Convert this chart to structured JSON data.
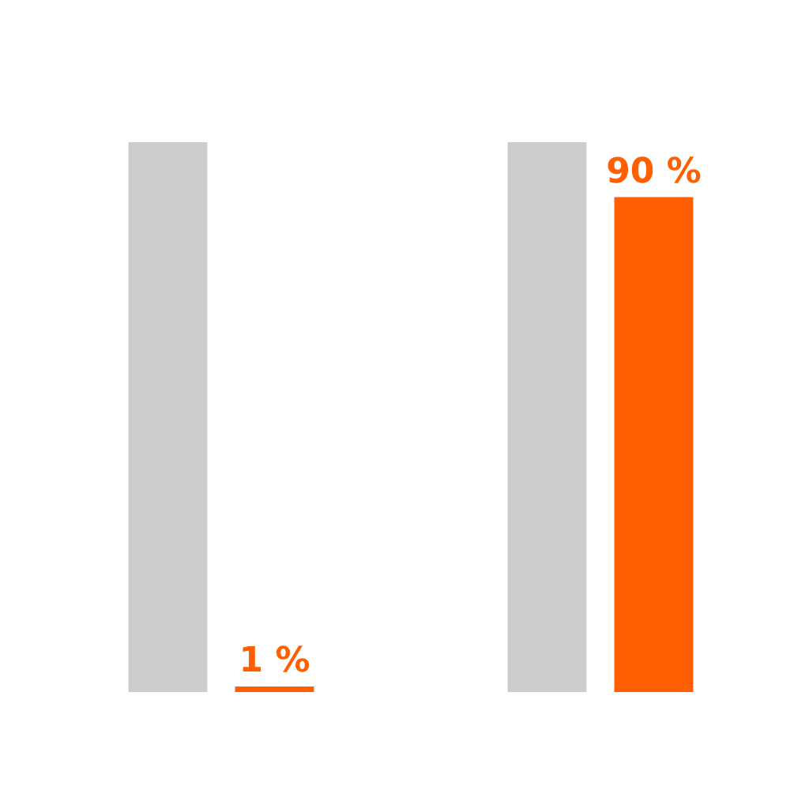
{
  "chart_data": {
    "type": "bar",
    "categories": [
      null,
      null
    ],
    "series": [
      {
        "color": "#cccccc",
        "values": [
          100,
          100
        ]
      },
      {
        "color": "#ff5f00",
        "values": [
          1,
          90
        ],
        "value_labels": [
          "1 %",
          "90 %"
        ]
      }
    ],
    "ylim": [
      0,
      100
    ],
    "tick_labels": false,
    "legend": false
  }
}
